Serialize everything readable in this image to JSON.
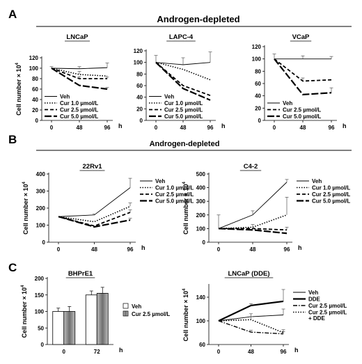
{
  "panel_labels": [
    "A",
    "B",
    "C"
  ],
  "section_titles": {
    "A": "Androgen-depleted",
    "B": "Androgen-depleted"
  },
  "y_axis_label": "Cell number × 10",
  "y_axis_exponent": "4",
  "x_unit": "h",
  "chart_data": [
    {
      "id": "lncap",
      "type": "line",
      "title": "LNCaP",
      "x": [
        0,
        48,
        96
      ],
      "xticks": [
        "0",
        "48",
        "96"
      ],
      "ylim": [
        0,
        120
      ],
      "yticks": [
        0,
        20,
        40,
        60,
        80,
        100,
        120
      ],
      "series": [
        {
          "name": "Veh",
          "values": [
            100,
            99,
            101
          ],
          "err": [
            3,
            4,
            9
          ],
          "style": "solid-thin"
        },
        {
          "name": "Cur 1.0 µmol/L",
          "values": [
            100,
            88,
            85
          ],
          "err": [
            0,
            6,
            0
          ],
          "style": "dotted"
        },
        {
          "name": "Cur 2.5 µmol/L",
          "values": [
            100,
            80,
            80
          ],
          "err": [
            0,
            4,
            3
          ],
          "style": "dashed"
        },
        {
          "name": "Cur 5.0 µmol/L",
          "values": [
            100,
            67,
            60
          ],
          "err": [
            0,
            0,
            3
          ],
          "style": "long-dash"
        }
      ],
      "legend": "bottom-left"
    },
    {
      "id": "lapc4",
      "type": "line",
      "title": "LAPC-4",
      "x": [
        0,
        48,
        96
      ],
      "xticks": [
        "0",
        "48",
        "96"
      ],
      "ylim": [
        0,
        120
      ],
      "yticks": [
        0,
        20,
        40,
        60,
        80,
        100,
        120
      ],
      "series": [
        {
          "name": "Veh",
          "values": [
            100,
            96,
            100
          ],
          "err": [
            12,
            12,
            18
          ],
          "style": "solid-thin"
        },
        {
          "name": "Cur 1.0 µmol/L",
          "values": [
            100,
            88,
            70
          ],
          "err": [
            0,
            0,
            0
          ],
          "style": "dotted"
        },
        {
          "name": "Cur 2.5 µmol/L",
          "values": [
            100,
            60,
            43
          ],
          "err": [
            0,
            0,
            0
          ],
          "style": "dashed"
        },
        {
          "name": "Cur 5.0 µmol/L",
          "values": [
            100,
            55,
            35
          ],
          "err": [
            0,
            0,
            0
          ],
          "style": "long-dash"
        }
      ],
      "legend": "bottom-left"
    },
    {
      "id": "vcap",
      "type": "line",
      "title": "VCaP",
      "x": [
        0,
        48,
        96
      ],
      "xticks": [
        "0",
        "48",
        "96"
      ],
      "ylim": [
        0,
        120
      ],
      "yticks": [
        0,
        20,
        40,
        60,
        80,
        100,
        120
      ],
      "series": [
        {
          "name": "Veh",
          "values": [
            100,
            100,
            100
          ],
          "err": [
            8,
            5,
            4
          ],
          "style": "solid-thin"
        },
        {
          "name": "Cur 2.5 µmol/L",
          "values": [
            100,
            64,
            66
          ],
          "err": [
            0,
            5,
            0
          ],
          "style": "dashed"
        },
        {
          "name": "Cur 5.0 µmol/L",
          "values": [
            100,
            42,
            45
          ],
          "err": [
            0,
            0,
            8
          ],
          "style": "long-dash"
        }
      ],
      "legend": "bottom-left"
    },
    {
      "id": "22rv1",
      "type": "line",
      "title": "22Rv1",
      "x": [
        0,
        48,
        96
      ],
      "xticks": [
        "0",
        "48",
        "96"
      ],
      "ylim": [
        0,
        400
      ],
      "yticks": [
        0,
        100,
        200,
        300,
        400
      ],
      "series": [
        {
          "name": "Veh",
          "values": [
            150,
            160,
            320
          ],
          "err": [
            0,
            5,
            55
          ],
          "style": "solid-thin"
        },
        {
          "name": "Cur 1.0 µmol/L",
          "values": [
            150,
            120,
            210
          ],
          "err": [
            0,
            0,
            20
          ],
          "style": "dotted"
        },
        {
          "name": "Cur 2.5 µmol/L",
          "values": [
            150,
            95,
            175
          ],
          "err": [
            0,
            0,
            15
          ],
          "style": "dashed"
        },
        {
          "name": "Cur 5.0 µmol/L",
          "values": [
            150,
            90,
            130
          ],
          "err": [
            0,
            0,
            10
          ],
          "style": "long-dash"
        }
      ],
      "legend": "top-right"
    },
    {
      "id": "c42",
      "type": "line",
      "title": "C4-2",
      "x": [
        0,
        48,
        96
      ],
      "xticks": [
        "0",
        "48",
        "96"
      ],
      "ylim": [
        0,
        500
      ],
      "yticks": [
        0,
        100,
        200,
        300,
        400,
        500
      ],
      "series": [
        {
          "name": "Veh",
          "values": [
            100,
            200,
            440
          ],
          "err": [
            100,
            30,
            20
          ],
          "style": "solid-thin"
        },
        {
          "name": "Cur 1.0 µmol/L",
          "values": [
            100,
            110,
            200
          ],
          "err": [
            0,
            20,
            130
          ],
          "style": "dotted"
        },
        {
          "name": "Cur 2.5 µmol/L",
          "values": [
            100,
            100,
            90
          ],
          "err": [
            0,
            0,
            20
          ],
          "style": "dashed"
        },
        {
          "name": "Cur 5.0 µmol/L",
          "values": [
            100,
            90,
            65
          ],
          "err": [
            0,
            0,
            0
          ],
          "style": "long-dash"
        }
      ],
      "legend": "top-right"
    },
    {
      "id": "bhpre1",
      "type": "bar",
      "title": "BHPrE1",
      "categories": [
        "0",
        "72"
      ],
      "ylim": [
        0,
        200
      ],
      "yticks": [
        0,
        50,
        100,
        150,
        200
      ],
      "series": [
        {
          "name": "Veh",
          "values": [
            100,
            150
          ],
          "err": [
            10,
            12
          ],
          "style": "white"
        },
        {
          "name": "Cur 2.5 µmol/L",
          "values": [
            100,
            155
          ],
          "err": [
            15,
            18
          ],
          "style": "gray"
        }
      ],
      "legend": "right"
    },
    {
      "id": "lncap_dde",
      "type": "line",
      "title": "LNCaP (DDE)",
      "x": [
        0,
        48,
        96
      ],
      "xticks": [
        "0",
        "48",
        "96"
      ],
      "ylim": [
        60,
        160
      ],
      "yticks": [
        60,
        100,
        140
      ],
      "series": [
        {
          "name": "Veh",
          "values": [
            100,
            107,
            110
          ],
          "err": [
            0,
            5,
            10
          ],
          "style": "solid-thin"
        },
        {
          "name": "DDE",
          "values": [
            100,
            126,
            133
          ],
          "err": [
            0,
            3,
            20
          ],
          "style": "solid-thick"
        },
        {
          "name": "Cur 2.5 µmol/L",
          "values": [
            100,
            81,
            78
          ],
          "err": [
            0,
            3,
            4
          ],
          "style": "dash-dot"
        },
        {
          "name": "Cur 2.5 µmol/L\n+ DDE",
          "values": [
            100,
            102,
            80
          ],
          "err": [
            0,
            5,
            5
          ],
          "style": "dotted"
        }
      ],
      "legend": "right"
    }
  ]
}
